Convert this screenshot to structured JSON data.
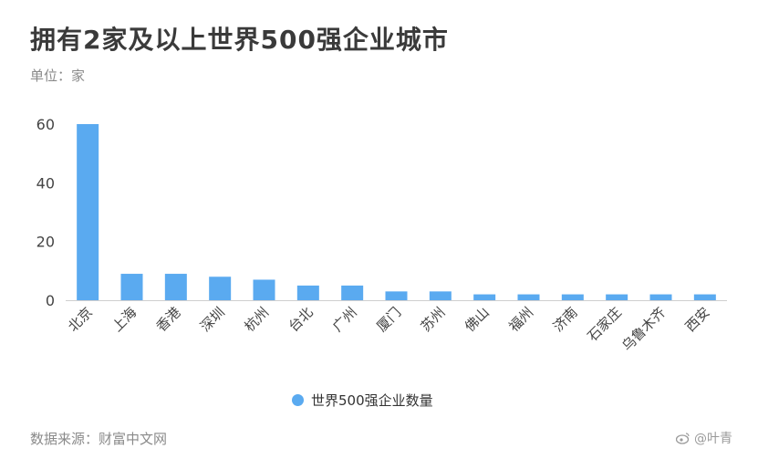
{
  "chart_data": {
    "type": "bar",
    "title": "拥有2家及以上世界500强企业城市",
    "unit_label": "单位：家",
    "categories": [
      "北京",
      "上海",
      "香港",
      "深圳",
      "杭州",
      "台北",
      "广州",
      "厦门",
      "苏州",
      "佛山",
      "福州",
      "济南",
      "石家庄",
      "乌鲁木齐",
      "西安"
    ],
    "series": [
      {
        "name": "世界500强企业数量",
        "values": [
          60,
          9,
          9,
          8,
          7,
          5,
          5,
          3,
          3,
          2,
          2,
          2,
          2,
          2,
          2
        ]
      }
    ],
    "ylim": [
      0,
      60
    ],
    "yticks": [
      0,
      20,
      40,
      60
    ],
    "grid": false,
    "legend_position": "bottom",
    "bar_color": "#5aaaf0"
  },
  "footer": {
    "source": "数据来源：财富中文网",
    "watermark": "@叶青"
  },
  "icons": {
    "watermark_icon": "weibo-icon"
  }
}
